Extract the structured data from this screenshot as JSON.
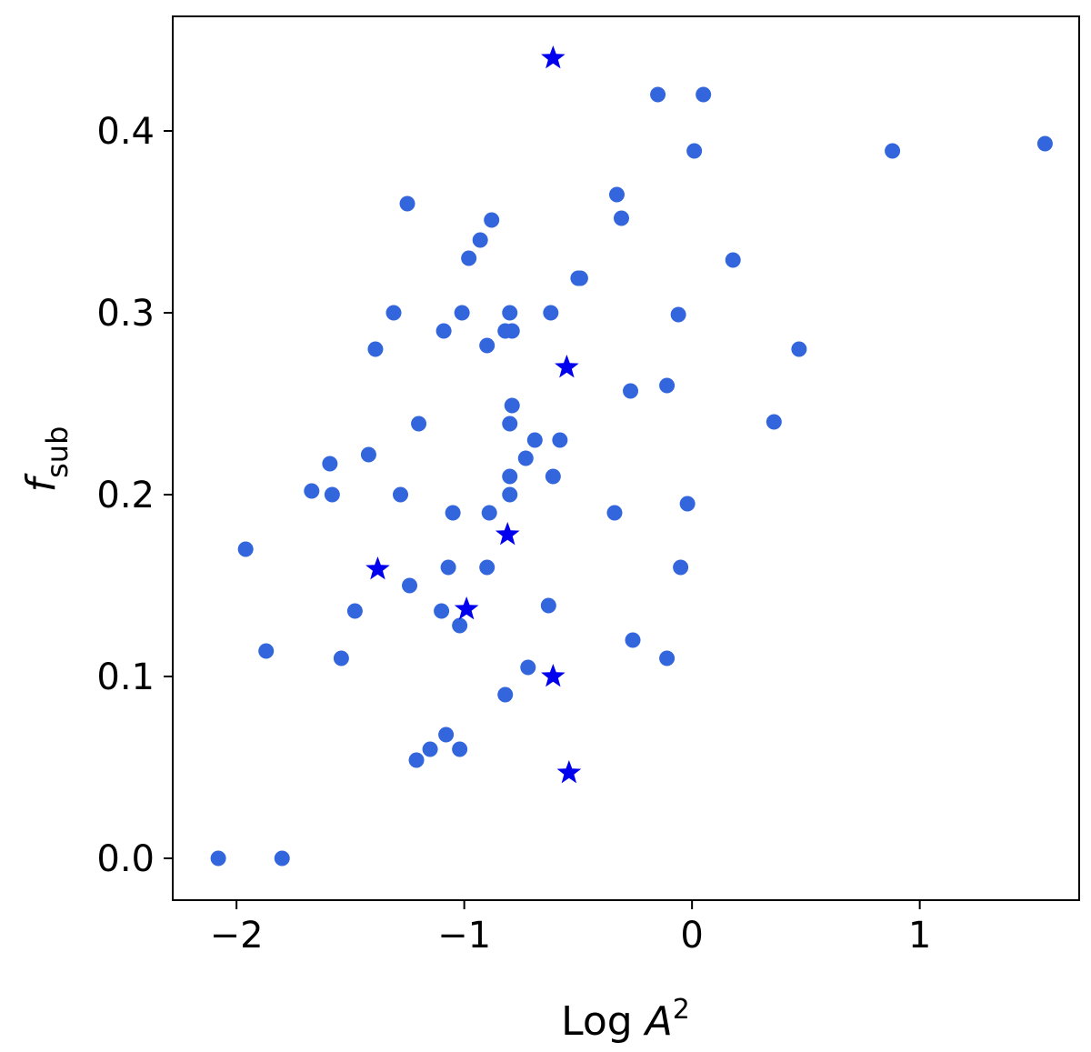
{
  "chart_data": {
    "type": "scatter",
    "xlabel": {
      "main": "Log ",
      "var": "A",
      "sup": "2"
    },
    "ylabel": {
      "var": "f",
      "sub": "sub"
    },
    "xlim": [
      -2.28,
      1.7
    ],
    "ylim": [
      -0.023,
      0.463
    ],
    "x_ticks": [
      -2,
      -1,
      0,
      1
    ],
    "x_tick_labels": [
      "−2",
      "−1",
      "0",
      "1"
    ],
    "y_ticks": [
      0.0,
      0.1,
      0.2,
      0.3,
      0.4
    ],
    "y_tick_labels": [
      "0.0",
      "0.1",
      "0.2",
      "0.3",
      "0.4"
    ],
    "grid": false,
    "series": [
      {
        "marker": "circle",
        "color": "#3366dd",
        "points": [
          [
            -2.08,
            0.0
          ],
          [
            -1.8,
            0.0
          ],
          [
            -1.96,
            0.17
          ],
          [
            -1.87,
            0.114
          ],
          [
            -1.67,
            0.202
          ],
          [
            -1.59,
            0.217
          ],
          [
            -1.58,
            0.2
          ],
          [
            -1.54,
            0.11
          ],
          [
            -1.48,
            0.136
          ],
          [
            -1.42,
            0.222
          ],
          [
            -1.39,
            0.28
          ],
          [
            -1.31,
            0.3
          ],
          [
            -1.28,
            0.2
          ],
          [
            -1.25,
            0.36
          ],
          [
            -1.24,
            0.15
          ],
          [
            -1.21,
            0.054
          ],
          [
            -1.2,
            0.239
          ],
          [
            -1.15,
            0.06
          ],
          [
            -1.1,
            0.136
          ],
          [
            -1.09,
            0.29
          ],
          [
            -1.08,
            0.068
          ],
          [
            -1.07,
            0.16
          ],
          [
            -1.05,
            0.19
          ],
          [
            -1.02,
            0.128
          ],
          [
            -1.02,
            0.06
          ],
          [
            -1.01,
            0.3
          ],
          [
            -0.98,
            0.33
          ],
          [
            -0.93,
            0.34
          ],
          [
            -0.9,
            0.282
          ],
          [
            -0.89,
            0.19
          ],
          [
            -0.9,
            0.16
          ],
          [
            -0.88,
            0.351
          ],
          [
            -0.82,
            0.09
          ],
          [
            -0.82,
            0.29
          ],
          [
            -0.8,
            0.3
          ],
          [
            -0.79,
            0.29
          ],
          [
            -0.8,
            0.239
          ],
          [
            -0.79,
            0.249
          ],
          [
            -0.8,
            0.21
          ],
          [
            -0.8,
            0.2
          ],
          [
            -0.73,
            0.22
          ],
          [
            -0.72,
            0.105
          ],
          [
            -0.69,
            0.23
          ],
          [
            -0.63,
            0.139
          ],
          [
            -0.62,
            0.3
          ],
          [
            -0.61,
            0.21
          ],
          [
            -0.58,
            0.23
          ],
          [
            -0.5,
            0.319
          ],
          [
            -0.49,
            0.319
          ],
          [
            -0.34,
            0.19
          ],
          [
            -0.33,
            0.365
          ],
          [
            -0.31,
            0.352
          ],
          [
            -0.27,
            0.257
          ],
          [
            -0.26,
            0.12
          ],
          [
            -0.15,
            0.42
          ],
          [
            -0.11,
            0.26
          ],
          [
            -0.11,
            0.11
          ],
          [
            -0.06,
            0.299
          ],
          [
            -0.05,
            0.16
          ],
          [
            -0.02,
            0.195
          ],
          [
            0.01,
            0.389
          ],
          [
            0.05,
            0.42
          ],
          [
            0.18,
            0.329
          ],
          [
            0.36,
            0.24
          ],
          [
            0.47,
            0.28
          ],
          [
            0.88,
            0.389
          ],
          [
            1.55,
            0.393
          ]
        ]
      },
      {
        "marker": "star",
        "color": "#0000ee",
        "points": [
          [
            -0.61,
            0.44
          ],
          [
            -0.55,
            0.27
          ],
          [
            -0.81,
            0.178
          ],
          [
            -1.38,
            0.159
          ],
          [
            -0.99,
            0.137
          ],
          [
            -0.61,
            0.1
          ],
          [
            -0.54,
            0.047
          ]
        ]
      }
    ]
  }
}
